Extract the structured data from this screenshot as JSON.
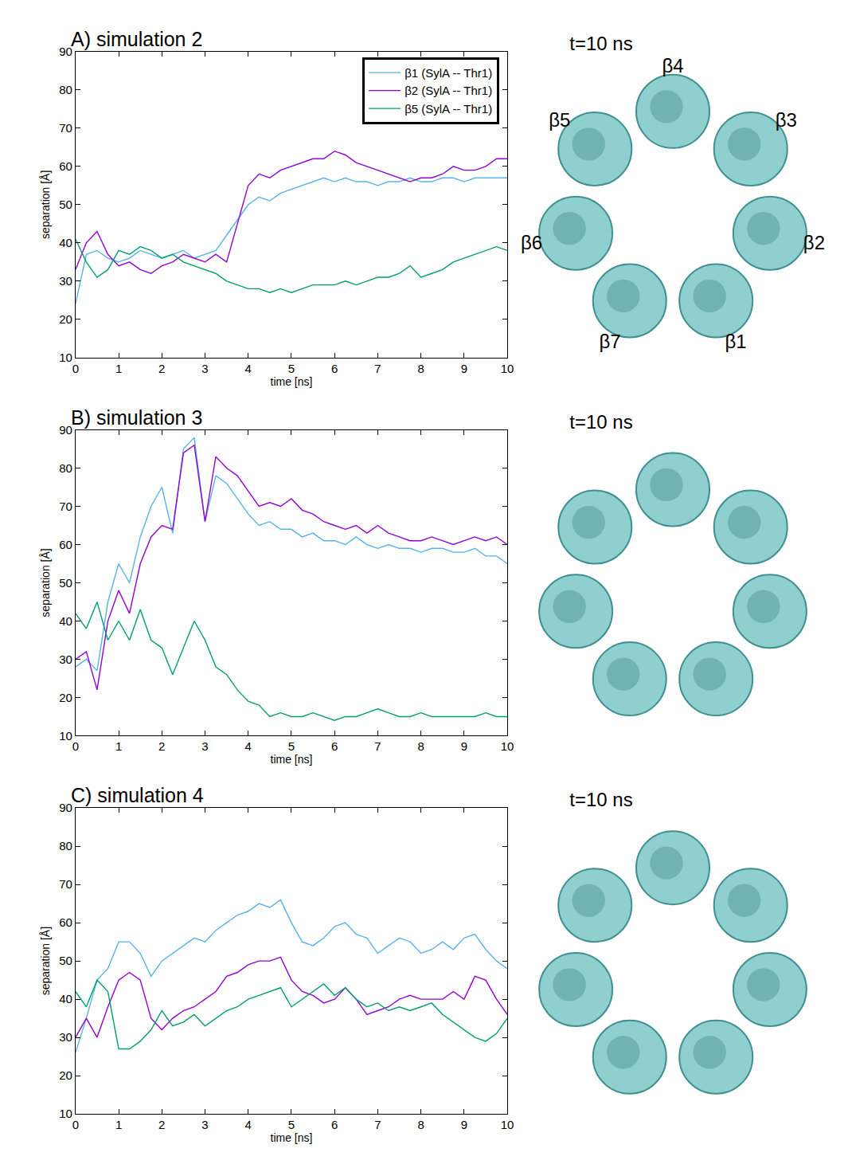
{
  "chart_data": [
    {
      "type": "line",
      "title": "A) simulation 2",
      "x_label": "time [ns]",
      "y_label": "separation [Å]",
      "x": [
        0,
        0.25,
        0.5,
        0.75,
        1,
        1.25,
        1.5,
        1.75,
        2,
        2.25,
        2.5,
        2.75,
        3,
        3.25,
        3.5,
        3.75,
        4,
        4.25,
        4.5,
        4.75,
        5,
        5.25,
        5.5,
        5.75,
        6,
        6.25,
        6.5,
        6.75,
        7,
        7.25,
        7.5,
        7.75,
        8,
        8.25,
        8.5,
        8.75,
        9,
        9.25,
        9.5,
        9.75,
        10
      ],
      "series": [
        {
          "name": "β1 (SylA -- Thr1)",
          "color": "#56b4e9",
          "values": [
            24,
            37,
            38,
            36,
            35,
            36,
            38,
            37,
            36,
            37,
            38,
            36,
            37,
            38,
            42,
            46,
            50,
            52,
            51,
            53,
            54,
            55,
            56,
            57,
            56,
            57,
            56,
            56,
            55,
            56,
            56,
            57,
            56,
            56,
            57,
            57,
            56,
            57,
            57,
            57,
            57
          ]
        },
        {
          "name": "β2 (SylA -- Thr1)",
          "color": "#9400d3",
          "values": [
            33,
            40,
            43,
            37,
            34,
            35,
            33,
            32,
            34,
            35,
            37,
            36,
            35,
            37,
            35,
            45,
            55,
            58,
            57,
            59,
            60,
            61,
            62,
            62,
            64,
            63,
            61,
            60,
            59,
            58,
            57,
            56,
            57,
            57,
            58,
            60,
            59,
            59,
            60,
            62,
            62
          ]
        },
        {
          "name": "β5 (SylA -- Thr1)",
          "color": "#009e73",
          "values": [
            41,
            35,
            31,
            33,
            38,
            37,
            39,
            38,
            36,
            37,
            35,
            34,
            33,
            32,
            30,
            29,
            28,
            28,
            27,
            28,
            27,
            28,
            29,
            29,
            29,
            30,
            29,
            30,
            31,
            31,
            32,
            34,
            31,
            32,
            33,
            35,
            36,
            37,
            38,
            39,
            38
          ]
        }
      ],
      "xlim": [
        0,
        10
      ],
      "ylim": [
        10,
        90
      ],
      "xticks": [
        0,
        1,
        2,
        3,
        4,
        5,
        6,
        7,
        8,
        9,
        10
      ],
      "yticks": [
        10,
        20,
        30,
        40,
        50,
        60,
        70,
        80,
        90
      ],
      "grid": false,
      "legend": "top right",
      "annotations": [
        "t=10 ns",
        "β4",
        "β3",
        "β2",
        "β1",
        "β7",
        "β6",
        "β5"
      ]
    },
    {
      "type": "line",
      "title": "B) simulation 3",
      "x_label": "time [ns]",
      "y_label": "separation [Å]",
      "x": [
        0,
        0.25,
        0.5,
        0.75,
        1,
        1.25,
        1.5,
        1.75,
        2,
        2.25,
        2.5,
        2.75,
        3,
        3.25,
        3.5,
        3.75,
        4,
        4.25,
        4.5,
        4.75,
        5,
        5.25,
        5.5,
        5.75,
        6,
        6.25,
        6.5,
        6.75,
        7,
        7.25,
        7.5,
        7.75,
        8,
        8.25,
        8.5,
        8.75,
        9,
        9.25,
        9.5,
        9.75,
        10
      ],
      "series": [
        {
          "name": "β1 (SylA -- Thr1)",
          "color": "#56b4e9",
          "values": [
            28,
            30,
            27,
            45,
            55,
            50,
            62,
            70,
            75,
            63,
            85,
            88,
            66,
            78,
            76,
            72,
            68,
            65,
            66,
            64,
            64,
            62,
            63,
            61,
            61,
            60,
            62,
            60,
            59,
            60,
            59,
            59,
            58,
            59,
            59,
            58,
            58,
            59,
            57,
            57,
            55
          ]
        },
        {
          "name": "β2 (SylA -- Thr1)",
          "color": "#9400d3",
          "values": [
            30,
            32,
            22,
            40,
            48,
            42,
            55,
            62,
            65,
            64,
            84,
            86,
            66,
            83,
            80,
            78,
            74,
            70,
            71,
            70,
            72,
            69,
            68,
            66,
            65,
            64,
            65,
            63,
            65,
            63,
            62,
            61,
            61,
            62,
            61,
            60,
            61,
            62,
            61,
            62,
            60
          ]
        },
        {
          "name": "β5 (SylA -- Thr1)",
          "color": "#009e73",
          "values": [
            42,
            38,
            45,
            35,
            40,
            35,
            43,
            35,
            33,
            26,
            33,
            40,
            35,
            28,
            26,
            22,
            19,
            18,
            15,
            16,
            15,
            15,
            16,
            15,
            14,
            15,
            15,
            16,
            17,
            16,
            15,
            15,
            16,
            15,
            15,
            15,
            15,
            15,
            16,
            15,
            15
          ]
        }
      ],
      "xlim": [
        0,
        10
      ],
      "ylim": [
        10,
        90
      ],
      "xticks": [
        0,
        1,
        2,
        3,
        4,
        5,
        6,
        7,
        8,
        9,
        10
      ],
      "yticks": [
        10,
        20,
        30,
        40,
        50,
        60,
        70,
        80,
        90
      ],
      "grid": false,
      "annotations": [
        "t=10 ns"
      ]
    },
    {
      "type": "line",
      "title": "C) simulation 4",
      "x_label": "time [ns]",
      "y_label": "separation [Å]",
      "x": [
        0,
        0.25,
        0.5,
        0.75,
        1,
        1.25,
        1.5,
        1.75,
        2,
        2.25,
        2.5,
        2.75,
        3,
        3.25,
        3.5,
        3.75,
        4,
        4.25,
        4.5,
        4.75,
        5,
        5.25,
        5.5,
        5.75,
        6,
        6.25,
        6.5,
        6.75,
        7,
        7.25,
        7.5,
        7.75,
        8,
        8.25,
        8.5,
        8.75,
        9,
        9.25,
        9.5,
        9.75,
        10
      ],
      "series": [
        {
          "name": "β1 (SylA -- Thr1)",
          "color": "#56b4e9",
          "values": [
            26,
            35,
            45,
            48,
            55,
            55,
            52,
            46,
            50,
            52,
            54,
            56,
            55,
            58,
            60,
            62,
            63,
            65,
            64,
            66,
            60,
            55,
            54,
            56,
            59,
            60,
            57,
            56,
            52,
            54,
            56,
            55,
            52,
            53,
            55,
            53,
            56,
            57,
            53,
            50,
            48
          ]
        },
        {
          "name": "β2 (SylA -- Thr1)",
          "color": "#9400d3",
          "values": [
            30,
            35,
            30,
            38,
            45,
            47,
            45,
            35,
            32,
            35,
            37,
            38,
            40,
            42,
            46,
            47,
            49,
            50,
            50,
            51,
            45,
            42,
            41,
            39,
            40,
            43,
            40,
            36,
            37,
            38,
            40,
            41,
            40,
            40,
            40,
            42,
            40,
            46,
            45,
            40,
            36
          ]
        },
        {
          "name": "β5 (SylA -- Thr1)",
          "color": "#009e73",
          "values": [
            42,
            38,
            45,
            42,
            27,
            27,
            29,
            32,
            37,
            33,
            34,
            36,
            33,
            35,
            37,
            38,
            40,
            41,
            42,
            43,
            38,
            40,
            42,
            44,
            41,
            43,
            40,
            38,
            39,
            37,
            38,
            37,
            38,
            39,
            36,
            34,
            32,
            30,
            29,
            31,
            35
          ]
        }
      ],
      "xlim": [
        0,
        10
      ],
      "ylim": [
        10,
        90
      ],
      "xticks": [
        0,
        1,
        2,
        3,
        4,
        5,
        6,
        7,
        8,
        9,
        10
      ],
      "yticks": [
        10,
        20,
        30,
        40,
        50,
        60,
        70,
        80,
        90
      ],
      "grid": false,
      "annotations": [
        "t=10 ns"
      ]
    }
  ]
}
